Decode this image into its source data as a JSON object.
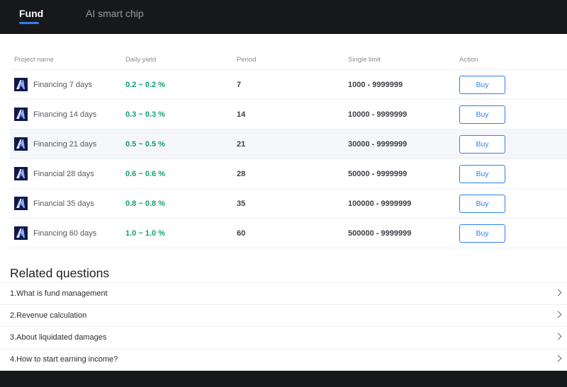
{
  "tabs": [
    {
      "label": "Fund",
      "active": true
    },
    {
      "label": "AI smart chip",
      "active": false
    }
  ],
  "table": {
    "headers": [
      "Project name",
      "Daily yield",
      "Period",
      "Single limit",
      "Action"
    ],
    "rows": [
      {
        "name": "Financing 7 days",
        "yield": "0.2 ~ 0.2 %",
        "period": "7",
        "limit": "1000 - 9999999",
        "action": "Buy"
      },
      {
        "name": "Financing 14 days",
        "yield": "0.3 ~ 0.3 %",
        "period": "14",
        "limit": "10000 - 9999999",
        "action": "Buy"
      },
      {
        "name": "Financing 21 days",
        "yield": "0.5 ~ 0.5 %",
        "period": "21",
        "limit": "30000 - 9999999",
        "action": "Buy"
      },
      {
        "name": "Financial 28 days",
        "yield": "0.6 ~ 0.6 %",
        "period": "28",
        "limit": "50000 - 9999999",
        "action": "Buy"
      },
      {
        "name": "Financial 35 days",
        "yield": "0.8 ~ 0.8 %",
        "period": "35",
        "limit": "100000 - 9999999",
        "action": "Buy"
      },
      {
        "name": "Financing 60 days",
        "yield": "1.0 ~ 1.0 %",
        "period": "60",
        "limit": "500000 - 9999999",
        "action": "Buy"
      }
    ]
  },
  "related": {
    "title": "Related questions",
    "items": [
      "1.What is fund management",
      "2.Revenue calculation",
      "3.About liquidated damages",
      "4.How to start earning income?"
    ]
  },
  "colors": {
    "accent": "#2f80ed",
    "yield_green": "#13a16a",
    "topbar": "#17181b"
  },
  "icons": {
    "project_logo": "brand-logo-icon",
    "question_chevron": "chevron-right-icon"
  }
}
